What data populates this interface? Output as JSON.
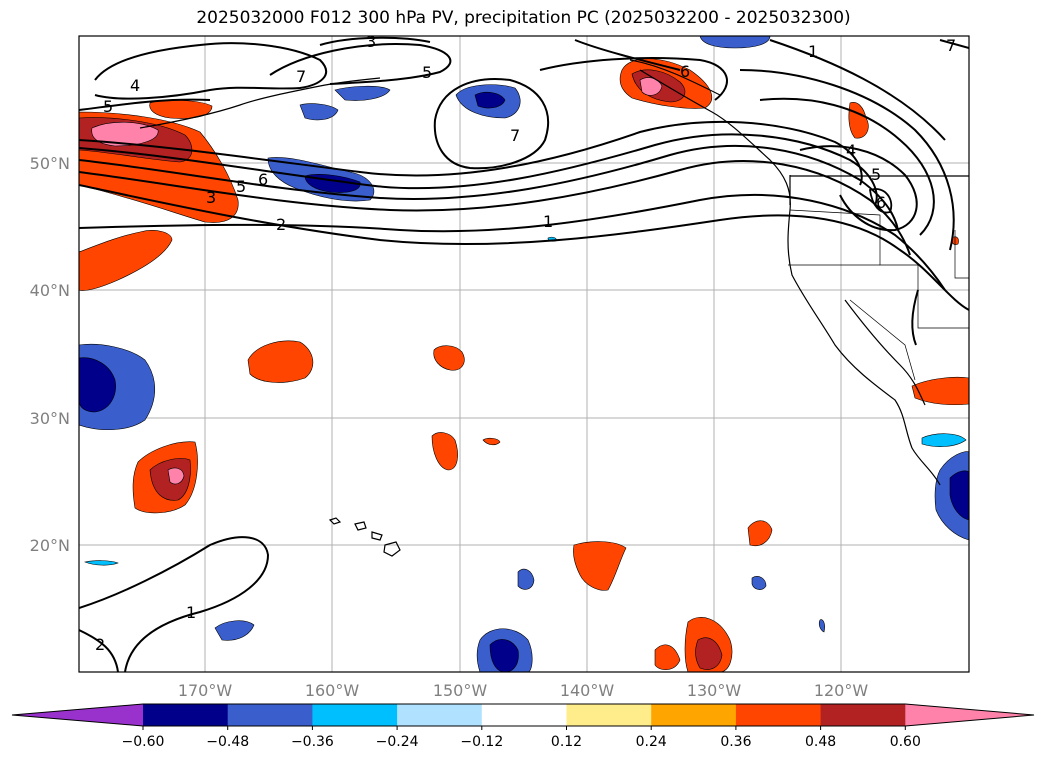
{
  "title": "2025032000 F012 300 hPa PV, precipitation PC (2025032200 - 2025032300)",
  "lat_labels": [
    "50°N",
    "40°N",
    "30°N",
    "20°N"
  ],
  "lon_labels": [
    "170°W",
    "160°W",
    "150°W",
    "140°W",
    "130°W",
    "120°W"
  ],
  "contour_labels": [
    "4",
    "5",
    "5",
    "3",
    "6",
    "2",
    "1",
    "1",
    "2",
    "7",
    "7",
    "6",
    "4",
    "5",
    "6",
    "3",
    "5",
    "1",
    "7"
  ],
  "colorbar": {
    "tick_labels": [
      "−0.60",
      "−0.48",
      "−0.36",
      "−0.24",
      "−0.12",
      "0.12",
      "0.24",
      "0.36",
      "0.48",
      "0.60"
    ],
    "colors": [
      "#9932cc",
      "#00008b",
      "#3a5fcd",
      "#00bfff",
      "#b0e2ff",
      "#ffffff",
      "#ffec8b",
      "#ffa500",
      "#ff4500",
      "#b22222",
      "#ff82ab"
    ]
  }
}
